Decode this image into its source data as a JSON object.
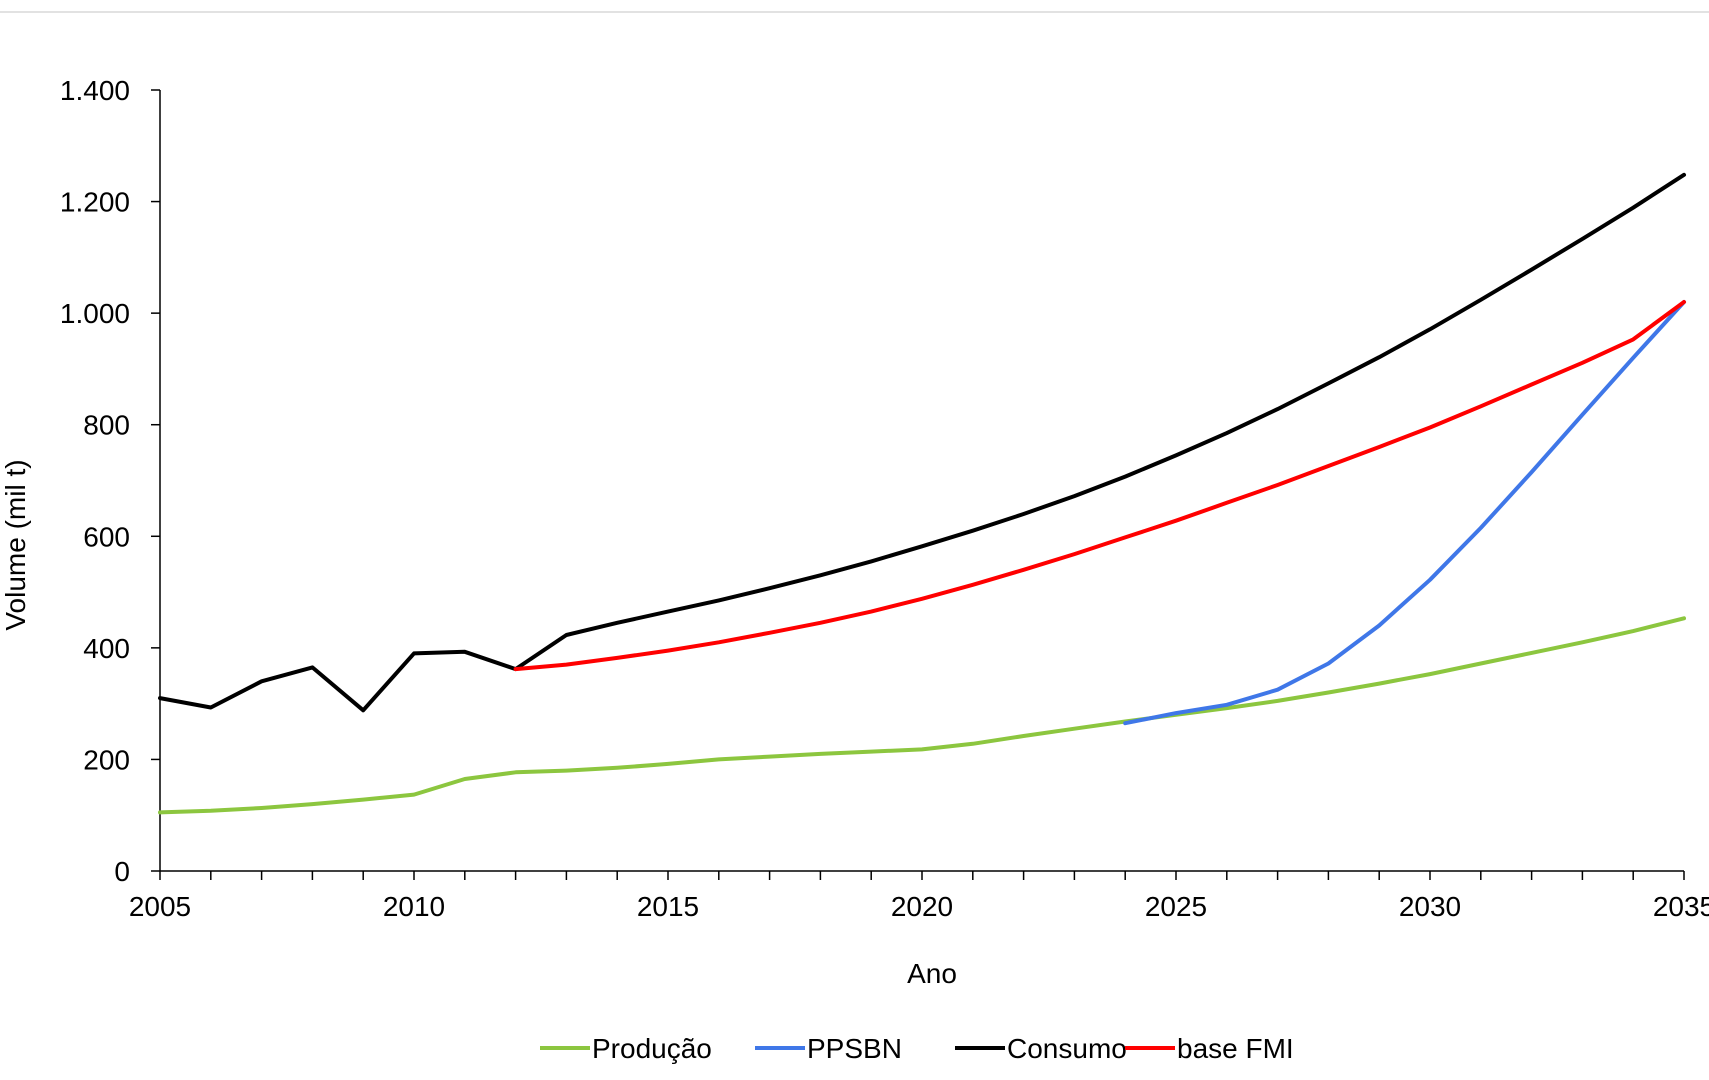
{
  "chart_data": {
    "type": "line",
    "title": "",
    "xlabel": "Ano",
    "ylabel": "Volume (mil t)",
    "xlim": [
      2005,
      2035
    ],
    "ylim": [
      0,
      1400
    ],
    "x_ticks": [
      2005,
      2010,
      2015,
      2020,
      2025,
      2030,
      2035
    ],
    "y_ticks": [
      0,
      200,
      400,
      600,
      800,
      1000,
      1200,
      1400
    ],
    "y_tick_labels": [
      "0",
      "200",
      "400",
      "600",
      "800",
      "1.000",
      "1.200",
      "1.400"
    ],
    "x_tick_labels": [
      "2005",
      "2010",
      "2015",
      "2020",
      "2025",
      "2030",
      "2035"
    ],
    "grid": false,
    "legend_position": "bottom",
    "series": [
      {
        "name": "Produção",
        "color": "#8CC63F",
        "points": [
          [
            2005,
            105
          ],
          [
            2006,
            108
          ],
          [
            2007,
            113
          ],
          [
            2008,
            120
          ],
          [
            2009,
            128
          ],
          [
            2010,
            137
          ],
          [
            2011,
            165
          ],
          [
            2012,
            177
          ],
          [
            2013,
            180
          ],
          [
            2014,
            185
          ],
          [
            2015,
            192
          ],
          [
            2016,
            200
          ],
          [
            2017,
            205
          ],
          [
            2018,
            210
          ],
          [
            2019,
            214
          ],
          [
            2020,
            218
          ],
          [
            2021,
            228
          ],
          [
            2022,
            242
          ],
          [
            2023,
            255
          ],
          [
            2024,
            268
          ],
          [
            2025,
            280
          ],
          [
            2026,
            292
          ],
          [
            2027,
            305
          ],
          [
            2028,
            320
          ],
          [
            2029,
            336
          ],
          [
            2030,
            353
          ],
          [
            2031,
            372
          ],
          [
            2032,
            391
          ],
          [
            2033,
            410
          ],
          [
            2034,
            430
          ],
          [
            2035,
            453
          ]
        ]
      },
      {
        "name": "PPSBN",
        "color": "#3F77E8",
        "points": [
          [
            2024,
            265
          ],
          [
            2025,
            283
          ],
          [
            2026,
            298
          ],
          [
            2027,
            325
          ],
          [
            2028,
            372
          ],
          [
            2029,
            440
          ],
          [
            2030,
            522
          ],
          [
            2031,
            615
          ],
          [
            2032,
            715
          ],
          [
            2033,
            818
          ],
          [
            2034,
            920
          ],
          [
            2035,
            1020
          ]
        ]
      },
      {
        "name": "Consumo",
        "color": "#000000",
        "points": [
          [
            2005,
            310
          ],
          [
            2006,
            293
          ],
          [
            2007,
            340
          ],
          [
            2008,
            365
          ],
          [
            2009,
            288
          ],
          [
            2010,
            390
          ],
          [
            2011,
            393
          ],
          [
            2012,
            362
          ],
          [
            2013,
            423
          ],
          [
            2014,
            445
          ],
          [
            2015,
            465
          ],
          [
            2016,
            485
          ],
          [
            2017,
            507
          ],
          [
            2018,
            530
          ],
          [
            2019,
            555
          ],
          [
            2020,
            582
          ],
          [
            2021,
            610
          ],
          [
            2022,
            640
          ],
          [
            2023,
            672
          ],
          [
            2024,
            707
          ],
          [
            2025,
            745
          ],
          [
            2026,
            785
          ],
          [
            2027,
            828
          ],
          [
            2028,
            874
          ],
          [
            2029,
            921
          ],
          [
            2030,
            971
          ],
          [
            2031,
            1024
          ],
          [
            2032,
            1078
          ],
          [
            2033,
            1133
          ],
          [
            2034,
            1189
          ],
          [
            2035,
            1248
          ]
        ]
      },
      {
        "name": "base FMI",
        "color": "#FF0000",
        "points": [
          [
            2012,
            362
          ],
          [
            2013,
            370
          ],
          [
            2014,
            382
          ],
          [
            2015,
            395
          ],
          [
            2016,
            410
          ],
          [
            2017,
            427
          ],
          [
            2018,
            445
          ],
          [
            2019,
            465
          ],
          [
            2020,
            488
          ],
          [
            2021,
            513
          ],
          [
            2022,
            540
          ],
          [
            2023,
            568
          ],
          [
            2024,
            598
          ],
          [
            2025,
            628
          ],
          [
            2026,
            660
          ],
          [
            2027,
            692
          ],
          [
            2028,
            726
          ],
          [
            2029,
            760
          ],
          [
            2030,
            795
          ],
          [
            2031,
            833
          ],
          [
            2032,
            872
          ],
          [
            2033,
            911
          ],
          [
            2034,
            953
          ],
          [
            2035,
            1020
          ]
        ]
      }
    ]
  }
}
